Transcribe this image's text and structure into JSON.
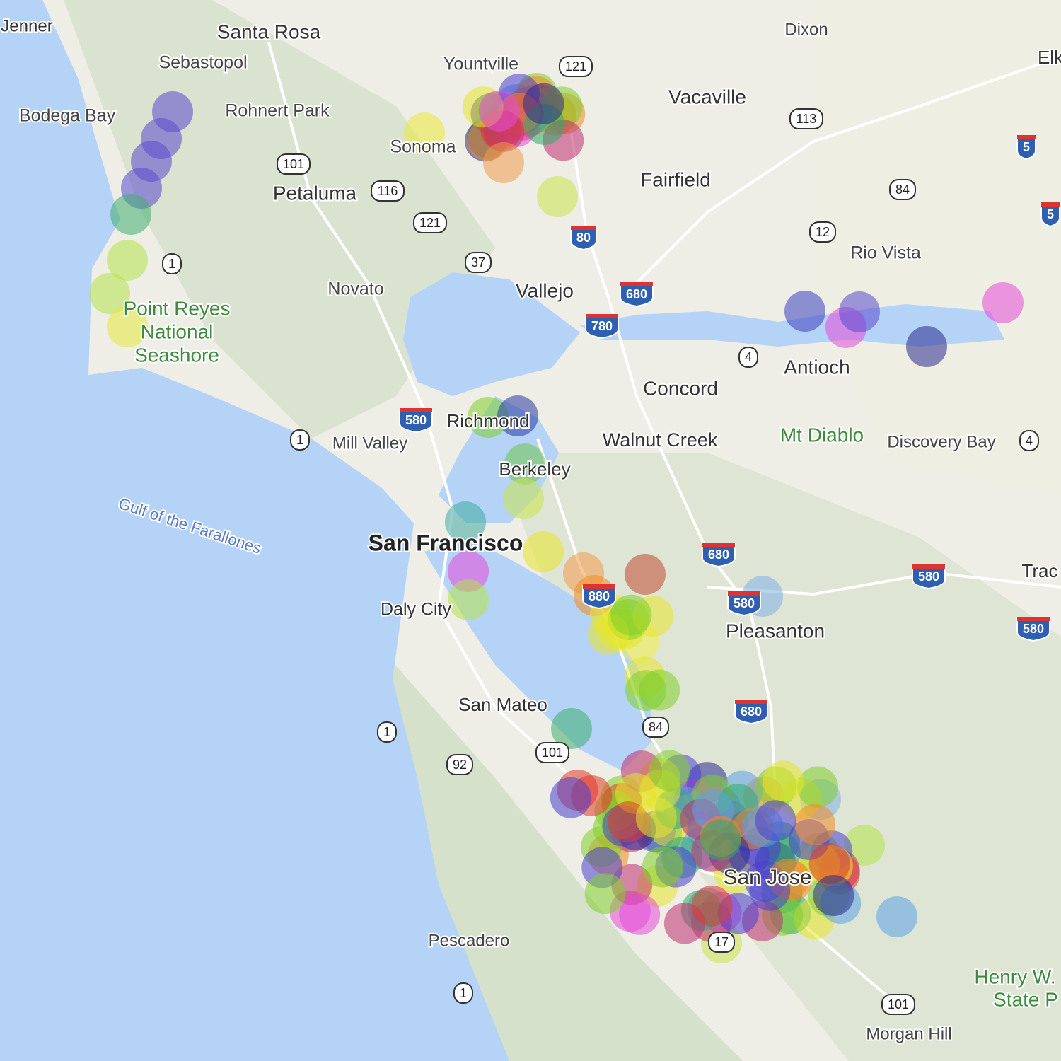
{
  "places": [
    "Jenner",
    "Santa Rosa",
    "Dixon",
    "Elk",
    "Sebastopol",
    "Yountville",
    "Bodega Bay",
    "Rohnert Park",
    "Vacaville",
    "Sonoma",
    "Fairfield",
    "Petaluma",
    "Rio Vista",
    "Novato",
    "Vallejo",
    "Point Reyes",
    "National",
    "Seashore",
    "Antioch",
    "Concord",
    "Richmond",
    "Mill Valley",
    "Walnut Creek",
    "Mt Diablo",
    "Discovery Bay",
    "Berkeley",
    "Gulf of the Farallones",
    "San Francisco",
    "Trac",
    "Daly City",
    "Pleasanton",
    "San Mateo",
    "San Jose",
    "Pescadero",
    "Henry W.",
    "State P",
    "Morgan Hill"
  ],
  "shields": [
    "121",
    "113",
    "5",
    "101",
    "116",
    "84",
    "5",
    "121",
    "80",
    "12",
    "1",
    "37",
    "680",
    "780",
    "4",
    "580",
    "1",
    "4",
    "680",
    "580",
    "880",
    "580",
    "580",
    "680",
    "1",
    "84",
    "101",
    "92",
    "17",
    "1",
    "101"
  ]
}
